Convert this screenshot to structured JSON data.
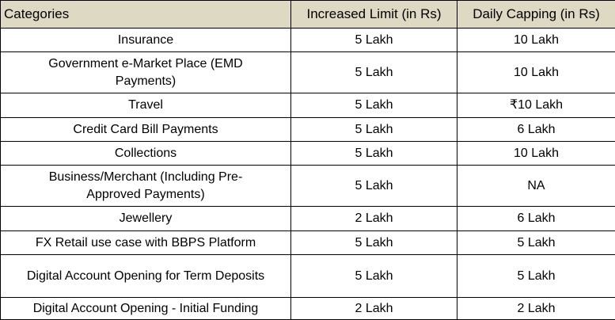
{
  "table": {
    "header": [
      "Categories",
      "Increased Limit (in Rs)",
      "Daily Capping (in Rs)"
    ],
    "rows": [
      [
        "Insurance",
        "5 Lakh",
        "10 Lakh"
      ],
      [
        "Government e-Market Place (EMD Payments)",
        "5 Lakh",
        "10 Lakh"
      ],
      [
        "Travel",
        "5 Lakh",
        "₹10 Lakh"
      ],
      [
        "Credit Card Bill Payments",
        "5 Lakh",
        "6 Lakh"
      ],
      [
        "Collections",
        "5 Lakh",
        "10 Lakh"
      ],
      [
        "Business/Merchant (Including Pre-Approved Payments)",
        "5 Lakh",
        "NA"
      ],
      [
        "Jewellery",
        "2 Lakh",
        "6 Lakh"
      ],
      [
        "FX Retail use case with BBPS Platform",
        "5 Lakh",
        "5 Lakh"
      ],
      [
        "Digital Account Opening for Term Deposits",
        "5 Lakh",
        "5 Lakh"
      ],
      [
        "Digital Account Opening - Initial Funding",
        "2 Lakh",
        "2 Lakh"
      ]
    ]
  }
}
